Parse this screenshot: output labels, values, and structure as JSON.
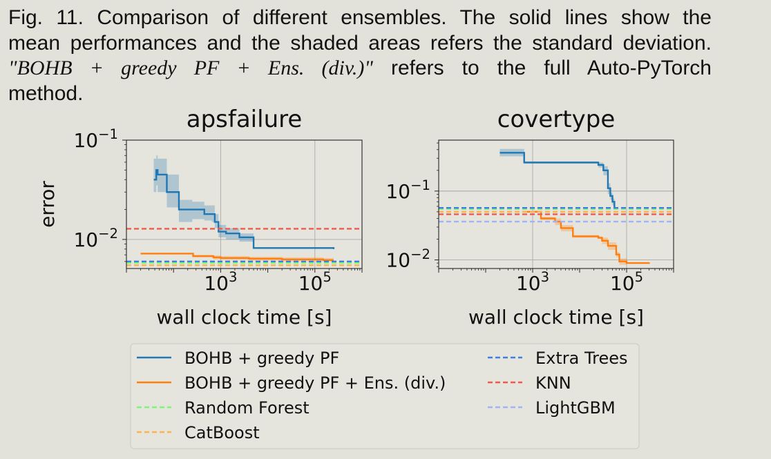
{
  "caption": {
    "lines": [
      "Fig. 11. Comparison of different ensembles. The solid lines show the",
      "mean performances and the shaded areas refers the standard deviation.",
      "",
      "method."
    ],
    "italic_part": "\"BOHB + greedy PF + Ens. (div.)\"",
    "line3_rest": "refers to the full Auto-PyTorch"
  },
  "colors": {
    "BOHB + greedy PF": "#1f77b4",
    "BOHB + greedy PF + Ens. (div.)": "#ff7f0e",
    "Random Forest": "#7cf57c",
    "CatBoost": "#ffb24d",
    "Extra Trees": "#3d7fe0",
    "KNN": "#ef5a4c",
    "LightGBM": "#9fb3f5"
  },
  "chart_data": [
    {
      "type": "line",
      "title": "apsfailure",
      "xlabel": "wall clock time [s]",
      "ylabel": "error",
      "xscale": "log",
      "yscale": "log",
      "xlim": [
        10,
        1000000
      ],
      "ylim": [
        0.0051,
        0.1
      ],
      "xticks": [
        "10^3",
        "10^5"
      ],
      "yticks": [
        "10^-1",
        "10^-2"
      ],
      "grid": true,
      "series": [
        {
          "name": "BOHB + greedy PF",
          "style": "solid",
          "x": [
            38,
            40,
            43,
            46,
            70,
            72,
            120,
            130,
            200,
            250,
            350,
            380,
            450,
            550,
            650,
            750,
            900,
            1300,
            2500,
            3000,
            5000,
            9000,
            20000,
            60000,
            250000
          ],
          "y": [
            0.04,
            0.04,
            0.05,
            0.045,
            0.045,
            0.03,
            0.03,
            0.02,
            0.02,
            0.02,
            0.02,
            0.02,
            0.018,
            0.018,
            0.018,
            0.015,
            0.012,
            0.0115,
            0.0105,
            0.0105,
            0.0082,
            0.0082,
            0.0082,
            0.0082,
            0.008
          ],
          "band_lo": [
            0.03,
            0.03,
            0.035,
            0.03,
            0.03,
            0.021,
            0.021,
            0.015,
            0.015,
            0.016,
            0.016,
            0.016,
            0.0155,
            0.0155,
            0.015,
            0.013,
            0.0105,
            0.01,
            0.0095,
            0.0095,
            0.0082,
            0.0082,
            0.0082,
            0.0082,
            0.008
          ],
          "band_hi": [
            0.065,
            0.065,
            0.07,
            0.065,
            0.065,
            0.045,
            0.045,
            0.025,
            0.025,
            0.024,
            0.024,
            0.024,
            0.022,
            0.022,
            0.022,
            0.018,
            0.014,
            0.013,
            0.0115,
            0.0115,
            0.0082,
            0.0082,
            0.0082,
            0.0082,
            0.008
          ]
        },
        {
          "name": "BOHB + greedy PF + Ens. (div.)",
          "style": "solid",
          "x": [
            20,
            200,
            260,
            400,
            700,
            1000,
            2000,
            4000,
            8000,
            20000,
            40000,
            80000,
            150000,
            250000
          ],
          "y": [
            0.0072,
            0.0072,
            0.0068,
            0.0068,
            0.0066,
            0.0065,
            0.0065,
            0.0064,
            0.0064,
            0.0063,
            0.0063,
            0.0063,
            0.0062,
            0.0062
          ],
          "band_lo": [
            0.0071,
            0.0071,
            0.0066,
            0.0066,
            0.0063,
            0.0062,
            0.0062,
            0.0061,
            0.0061,
            0.006,
            0.006,
            0.006,
            0.006,
            0.006
          ],
          "band_hi": [
            0.0073,
            0.0073,
            0.007,
            0.007,
            0.0069,
            0.0068,
            0.0068,
            0.0067,
            0.0067,
            0.0066,
            0.0066,
            0.0066,
            0.0065,
            0.0065
          ]
        },
        {
          "name": "Random Forest",
          "style": "dashed",
          "y": 0.0058
        },
        {
          "name": "CatBoost",
          "style": "dashed",
          "y": 0.0055
        },
        {
          "name": "Extra Trees",
          "style": "dashed",
          "y": 0.006
        },
        {
          "name": "KNN",
          "style": "dashed",
          "y": 0.0128
        }
      ]
    },
    {
      "type": "line",
      "title": "covertype",
      "xlabel": "wall clock time [s]",
      "ylabel": "",
      "xscale": "log",
      "yscale": "log",
      "xlim": [
        10,
        1000000
      ],
      "ylim": [
        0.0075,
        0.55
      ],
      "xticks": [
        "10^3",
        "10^5"
      ],
      "yticks": [
        "10^-1",
        "10^-2"
      ],
      "grid": true,
      "series": [
        {
          "name": "BOHB + greedy PF",
          "style": "solid",
          "x": [
            200,
            650,
            660,
            20000,
            25000,
            32000,
            40000,
            45000,
            50000,
            55000
          ],
          "y": [
            0.36,
            0.36,
            0.26,
            0.26,
            0.24,
            0.2,
            0.11,
            0.085,
            0.07,
            0.058
          ],
          "band_lo": [
            0.32,
            0.32,
            0.25,
            0.25,
            0.22,
            0.17,
            0.09,
            0.075,
            0.062,
            0.058
          ],
          "band_hi": [
            0.41,
            0.41,
            0.27,
            0.27,
            0.26,
            0.23,
            0.13,
            0.095,
            0.078,
            0.058
          ]
        },
        {
          "name": "BOHB + greedy PF + Ens. (div.)",
          "style": "solid",
          "x": [
            600,
            1000,
            1500,
            2000,
            2600,
            3000,
            4000,
            7000,
            7200,
            20000,
            25000,
            30000,
            40000,
            60000,
            70000,
            100000,
            200000,
            300000
          ],
          "y": [
            0.05,
            0.05,
            0.04,
            0.04,
            0.04,
            0.036,
            0.029,
            0.029,
            0.022,
            0.022,
            0.021,
            0.019,
            0.016,
            0.012,
            0.0095,
            0.009,
            0.009,
            0.0092
          ],
          "band_lo": [
            0.049,
            0.049,
            0.038,
            0.038,
            0.038,
            0.032,
            0.026,
            0.026,
            0.021,
            0.021,
            0.02,
            0.017,
            0.014,
            0.011,
            0.0085,
            0.0088,
            0.0088,
            0.009
          ],
          "band_hi": [
            0.051,
            0.051,
            0.042,
            0.042,
            0.042,
            0.04,
            0.032,
            0.032,
            0.023,
            0.023,
            0.022,
            0.021,
            0.018,
            0.013,
            0.0105,
            0.0092,
            0.0092,
            0.0094
          ]
        },
        {
          "name": "Random Forest",
          "style": "dashed",
          "y": 0.055
        },
        {
          "name": "CatBoost",
          "style": "dashed",
          "y": 0.05
        },
        {
          "name": "Extra Trees",
          "style": "dashed",
          "y": 0.057
        },
        {
          "name": "KNN",
          "style": "dashed",
          "y": 0.046
        },
        {
          "name": "LightGBM",
          "style": "dashed",
          "y": 0.036
        }
      ]
    }
  ],
  "legend": {
    "placement": "bottom",
    "entries": [
      {
        "label": "BOHB + greedy PF",
        "style": "solid"
      },
      {
        "label": "BOHB + greedy PF + Ens. (div.)",
        "style": "solid"
      },
      {
        "label": "Random Forest",
        "style": "dashed"
      },
      {
        "label": "CatBoost",
        "style": "dashed"
      },
      {
        "label": "Extra Trees",
        "style": "dashed"
      },
      {
        "label": "KNN",
        "style": "dashed"
      },
      {
        "label": "LightGBM",
        "style": "dashed"
      }
    ]
  }
}
